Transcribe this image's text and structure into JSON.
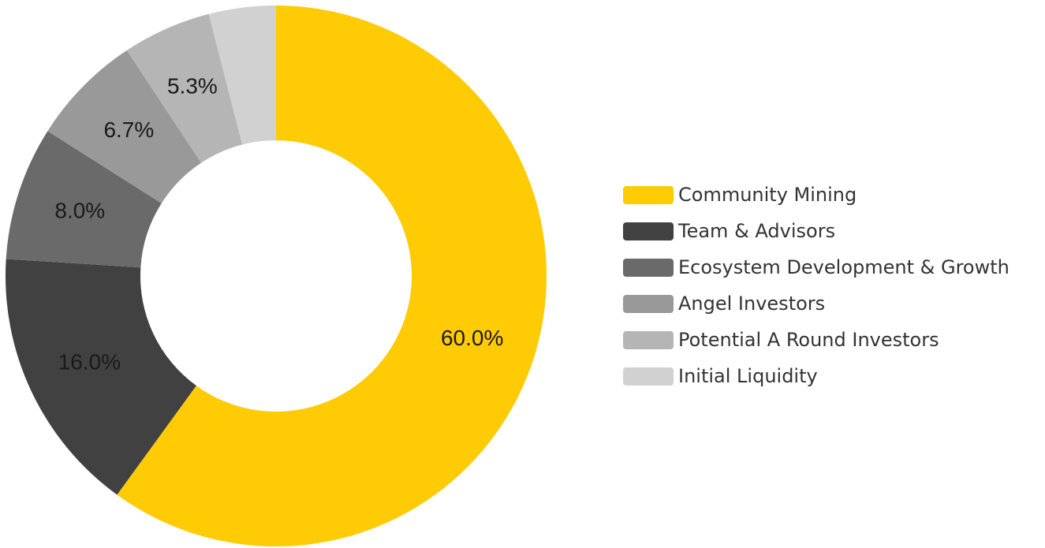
{
  "chart_data": {
    "type": "pie",
    "donut": true,
    "title": "",
    "series": [
      {
        "name": "Community Mining",
        "value": 60.0,
        "label": "60.0%",
        "color": "#FFCB05"
      },
      {
        "name": "Team & Advisors",
        "value": 16.0,
        "label": "16.0%",
        "color": "#414141"
      },
      {
        "name": "Ecosystem Development & Growth",
        "value": 8.0,
        "label": "8.0%",
        "color": "#6A6A6A"
      },
      {
        "name": "Angel Investors",
        "value": 6.7,
        "label": "6.7%",
        "color": "#999999"
      },
      {
        "name": "Potential A Round Investors",
        "value": 5.3,
        "label": "5.3%",
        "color": "#B5B5B5"
      },
      {
        "name": "Initial Liquidity",
        "value": 4.0,
        "label": "",
        "color": "#D1D1D1"
      }
    ],
    "legend_position": "right"
  }
}
